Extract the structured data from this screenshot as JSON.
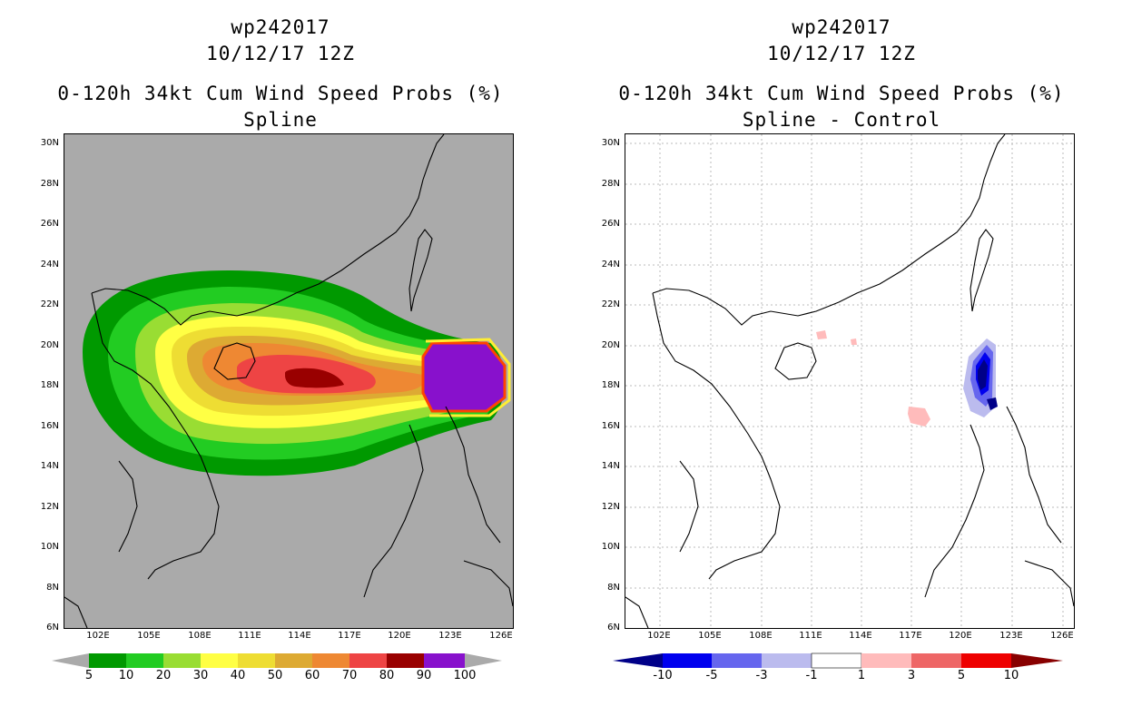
{
  "left_panel": {
    "storm_id": "wp242017",
    "datetime": "10/12/17 12Z",
    "product": "0-120h 34kt Cum Wind Speed Probs (%)",
    "subtitle": "Spline",
    "colorbar_labels": [
      "5",
      "10",
      "20",
      "30",
      "40",
      "50",
      "60",
      "70",
      "80",
      "90",
      "100"
    ],
    "colorbar_colors": [
      "#009900",
      "#22cc22",
      "#99dd33",
      "#ffff44",
      "#eedd33",
      "#ddaa33",
      "#ee8833",
      "#ee4444",
      "#990000",
      "#8811cc"
    ],
    "background_color": "#aaaaaa"
  },
  "right_panel": {
    "storm_id": "wp242017",
    "datetime": "10/12/17 12Z",
    "product": "0-120h 34kt Cum Wind Speed Probs (%)",
    "subtitle": "Spline - Control",
    "colorbar_labels": [
      "-10",
      "-5",
      "-3",
      "-1",
      "1",
      "3",
      "5",
      "10"
    ],
    "colorbar_colors": [
      "#000088",
      "#0000ee",
      "#6666ee",
      "#bbbbee",
      "#ffffff",
      "#ffbbbb",
      "#ee6666",
      "#ee0000",
      "#880000"
    ],
    "background_color": "#ffffff"
  },
  "axes": {
    "lat_labels": [
      "30N",
      "28N",
      "26N",
      "24N",
      "22N",
      "20N",
      "18N",
      "16N",
      "14N",
      "12N",
      "10N",
      "8N",
      "6N"
    ],
    "lon_labels": [
      "102E",
      "105E",
      "108E",
      "111E",
      "114E",
      "117E",
      "120E",
      "123E",
      "126E"
    ]
  },
  "colors": {
    "coast": "#000000",
    "grid": "#bbbbbb"
  }
}
